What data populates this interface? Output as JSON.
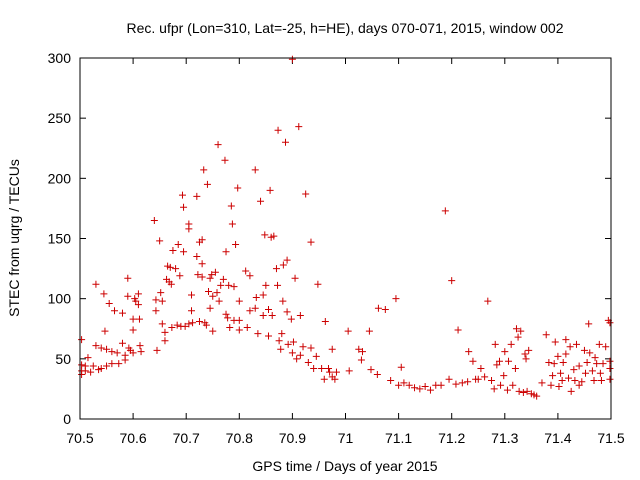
{
  "chart_data": {
    "type": "scatter",
    "title": "Rec. ufpr (Lon=310, Lat=-25, h=HE), days 070-071, 2015, window 002",
    "xlabel": "GPS time / Days of year 2015",
    "ylabel": "STEC from uqrg / TECUs",
    "xlim": [
      70.5,
      71.5
    ],
    "ylim": [
      0,
      300
    ],
    "xticks": [
      "70.5",
      "70.6",
      "70.7",
      "70.8",
      "70.9",
      "71",
      "71.1",
      "71.2",
      "71.3",
      "71.4",
      "71.5"
    ],
    "yticks": [
      "0",
      "50",
      "100",
      "150",
      "200",
      "250",
      "300"
    ],
    "grid": false,
    "legend": "none",
    "marker": "plus",
    "color": "#cc0000",
    "points": [
      [
        70.503,
        66
      ],
      [
        70.503,
        45
      ],
      [
        70.503,
        40
      ],
      [
        70.503,
        37
      ],
      [
        70.51,
        44
      ],
      [
        70.51,
        40
      ],
      [
        70.515,
        51
      ],
      [
        70.52,
        39
      ],
      [
        70.525,
        44
      ],
      [
        70.53,
        112
      ],
      [
        70.53,
        61
      ],
      [
        70.535,
        41
      ],
      [
        70.54,
        59
      ],
      [
        70.54,
        42
      ],
      [
        70.545,
        104
      ],
      [
        70.547,
        73
      ],
      [
        70.55,
        58
      ],
      [
        70.55,
        44
      ],
      [
        70.555,
        96
      ],
      [
        70.56,
        56
      ],
      [
        70.56,
        46
      ],
      [
        70.565,
        90
      ],
      [
        70.57,
        55
      ],
      [
        70.573,
        46
      ],
      [
        70.58,
        88
      ],
      [
        70.58,
        63
      ],
      [
        70.585,
        53
      ],
      [
        70.585,
        49
      ],
      [
        70.59,
        117
      ],
      [
        70.59,
        102
      ],
      [
        70.592,
        59
      ],
      [
        70.595,
        57
      ],
      [
        70.6,
        83
      ],
      [
        70.6,
        74
      ],
      [
        70.6,
        55
      ],
      [
        70.603,
        100
      ],
      [
        70.605,
        98
      ],
      [
        70.61,
        104
      ],
      [
        70.61,
        95
      ],
      [
        70.612,
        83
      ],
      [
        70.613,
        61
      ],
      [
        70.615,
        56
      ],
      [
        70.64,
        165
      ],
      [
        70.643,
        99
      ],
      [
        70.643,
        90
      ],
      [
        70.645,
        57
      ],
      [
        70.65,
        148
      ],
      [
        70.652,
        105
      ],
      [
        70.655,
        98
      ],
      [
        70.655,
        79
      ],
      [
        70.66,
        72
      ],
      [
        70.66,
        65
      ],
      [
        70.663,
        116
      ],
      [
        70.665,
        127
      ],
      [
        70.668,
        114
      ],
      [
        70.67,
        126
      ],
      [
        70.672,
        112
      ],
      [
        70.673,
        76
      ],
      [
        70.675,
        140
      ],
      [
        70.68,
        125
      ],
      [
        70.683,
        78
      ],
      [
        70.685,
        145
      ],
      [
        70.688,
        119
      ],
      [
        70.69,
        77
      ],
      [
        70.693,
        186
      ],
      [
        70.695,
        176
      ],
      [
        70.695,
        139
      ],
      [
        70.698,
        77
      ],
      [
        70.705,
        162
      ],
      [
        70.705,
        158
      ],
      [
        70.705,
        79
      ],
      [
        70.71,
        103
      ],
      [
        70.71,
        90
      ],
      [
        70.712,
        80
      ],
      [
        70.72,
        185
      ],
      [
        70.72,
        135
      ],
      [
        70.722,
        120
      ],
      [
        70.725,
        147
      ],
      [
        70.725,
        81
      ],
      [
        70.73,
        149
      ],
      [
        70.73,
        129
      ],
      [
        70.73,
        118
      ],
      [
        70.733,
        207
      ],
      [
        70.735,
        80
      ],
      [
        70.738,
        78
      ],
      [
        70.74,
        195
      ],
      [
        70.742,
        106
      ],
      [
        70.745,
        92
      ],
      [
        70.745,
        117
      ],
      [
        70.748,
        120
      ],
      [
        70.75,
        102
      ],
      [
        70.75,
        73
      ],
      [
        70.755,
        122
      ],
      [
        70.758,
        105
      ],
      [
        70.76,
        228
      ],
      [
        70.762,
        98
      ],
      [
        70.765,
        111
      ],
      [
        70.77,
        116
      ],
      [
        70.773,
        215
      ],
      [
        70.775,
        139
      ],
      [
        70.775,
        87
      ],
      [
        70.778,
        84
      ],
      [
        70.78,
        111
      ],
      [
        70.782,
        76
      ],
      [
        70.785,
        177
      ],
      [
        70.787,
        162
      ],
      [
        70.79,
        110
      ],
      [
        70.79,
        82
      ],
      [
        70.793,
        145
      ],
      [
        70.797,
        192
      ],
      [
        70.8,
        82
      ],
      [
        70.8,
        98
      ],
      [
        70.8,
        74
      ],
      [
        70.812,
        123
      ],
      [
        70.815,
        76
      ],
      [
        70.82,
        119
      ],
      [
        70.82,
        90
      ],
      [
        70.83,
        207
      ],
      [
        70.83,
        92
      ],
      [
        70.832,
        101
      ],
      [
        70.835,
        71
      ],
      [
        70.84,
        181
      ],
      [
        70.845,
        103
      ],
      [
        70.845,
        86
      ],
      [
        70.848,
        153
      ],
      [
        70.85,
        111
      ],
      [
        70.855,
        91
      ],
      [
        70.855,
        69
      ],
      [
        70.858,
        190
      ],
      [
        70.86,
        151
      ],
      [
        70.862,
        86
      ],
      [
        70.865,
        152
      ],
      [
        70.87,
        125
      ],
      [
        70.872,
        111
      ],
      [
        70.873,
        240
      ],
      [
        70.875,
        65
      ],
      [
        70.878,
        58
      ],
      [
        70.88,
        71
      ],
      [
        70.882,
        98
      ],
      [
        70.883,
        128
      ],
      [
        70.887,
        230
      ],
      [
        70.89,
        132
      ],
      [
        70.89,
        89
      ],
      [
        70.892,
        62
      ],
      [
        70.898,
        83
      ],
      [
        70.9,
        299
      ],
      [
        70.9,
        55
      ],
      [
        70.902,
        64
      ],
      [
        70.905,
        117
      ],
      [
        70.908,
        50
      ],
      [
        70.912,
        243
      ],
      [
        70.915,
        86
      ],
      [
        70.915,
        53
      ],
      [
        70.92,
        60
      ],
      [
        70.925,
        187
      ],
      [
        70.93,
        47
      ],
      [
        70.935,
        59
      ],
      [
        70.935,
        147
      ],
      [
        70.94,
        42
      ],
      [
        70.945,
        52
      ],
      [
        70.948,
        112
      ],
      [
        70.955,
        42
      ],
      [
        70.96,
        33
      ],
      [
        70.962,
        81
      ],
      [
        70.968,
        42
      ],
      [
        70.97,
        39
      ],
      [
        70.975,
        35
      ],
      [
        70.975,
        58
      ],
      [
        70.98,
        33
      ],
      [
        70.983,
        39
      ],
      [
        71.005,
        73
      ],
      [
        71.007,
        40
      ],
      [
        71.025,
        58
      ],
      [
        71.03,
        49
      ],
      [
        71.032,
        56
      ],
      [
        71.045,
        73
      ],
      [
        71.048,
        41
      ],
      [
        71.062,
        92
      ],
      [
        71.06,
        37
      ],
      [
        71.075,
        91
      ],
      [
        71.085,
        32
      ],
      [
        71.095,
        100
      ],
      [
        71.1,
        28
      ],
      [
        71.105,
        43
      ],
      [
        71.11,
        30
      ],
      [
        71.12,
        28
      ],
      [
        71.13,
        26
      ],
      [
        71.14,
        25
      ],
      [
        71.15,
        27
      ],
      [
        71.16,
        24
      ],
      [
        71.17,
        28
      ],
      [
        71.18,
        28
      ],
      [
        71.188,
        173
      ],
      [
        71.195,
        33
      ],
      [
        71.2,
        115
      ],
      [
        71.208,
        29
      ],
      [
        71.212,
        74
      ],
      [
        71.22,
        30
      ],
      [
        71.23,
        31
      ],
      [
        71.232,
        56
      ],
      [
        71.24,
        48
      ],
      [
        71.245,
        33
      ],
      [
        71.25,
        33
      ],
      [
        71.255,
        42
      ],
      [
        71.262,
        35
      ],
      [
        71.268,
        98
      ],
      [
        71.275,
        32
      ],
      [
        71.28,
        25
      ],
      [
        71.282,
        62
      ],
      [
        71.285,
        45
      ],
      [
        71.29,
        48
      ],
      [
        71.292,
        28
      ],
      [
        71.298,
        36
      ],
      [
        71.3,
        56
      ],
      [
        71.305,
        24
      ],
      [
        71.307,
        48
      ],
      [
        71.312,
        62
      ],
      [
        71.315,
        28
      ],
      [
        71.32,
        42
      ],
      [
        71.322,
        75
      ],
      [
        71.325,
        68
      ],
      [
        71.327,
        23
      ],
      [
        71.33,
        73
      ],
      [
        71.335,
        22
      ],
      [
        71.338,
        54
      ],
      [
        71.34,
        50
      ],
      [
        71.342,
        23
      ],
      [
        71.345,
        57
      ],
      [
        71.35,
        21
      ],
      [
        71.355,
        20
      ],
      [
        71.36,
        19
      ],
      [
        71.37,
        30
      ],
      [
        71.378,
        70
      ],
      [
        71.383,
        47
      ],
      [
        71.387,
        28
      ],
      [
        71.39,
        36
      ],
      [
        71.393,
        46
      ],
      [
        71.395,
        64
      ],
      [
        71.4,
        52
      ],
      [
        71.402,
        27
      ],
      [
        71.405,
        38
      ],
      [
        71.408,
        32
      ],
      [
        71.41,
        47
      ],
      [
        71.415,
        54
      ],
      [
        71.415,
        66
      ],
      [
        71.42,
        34
      ],
      [
        71.423,
        60
      ],
      [
        71.425,
        23
      ],
      [
        71.43,
        41
      ],
      [
        71.432,
        32
      ],
      [
        71.435,
        62
      ],
      [
        71.44,
        44
      ],
      [
        71.44,
        28
      ],
      [
        71.445,
        31
      ],
      [
        71.45,
        57
      ],
      [
        71.452,
        38
      ],
      [
        71.455,
        47
      ],
      [
        71.458,
        79
      ],
      [
        71.46,
        55
      ],
      [
        71.465,
        40
      ],
      [
        71.468,
        32
      ],
      [
        71.47,
        51
      ],
      [
        71.473,
        46
      ],
      [
        71.478,
        62
      ],
      [
        71.48,
        38
      ],
      [
        71.482,
        32
      ],
      [
        71.485,
        46
      ],
      [
        71.49,
        60
      ],
      [
        71.495,
        82
      ],
      [
        71.498,
        80
      ],
      [
        71.498,
        42
      ],
      [
        71.498,
        33
      ],
      [
        71.498,
        48
      ]
    ]
  }
}
